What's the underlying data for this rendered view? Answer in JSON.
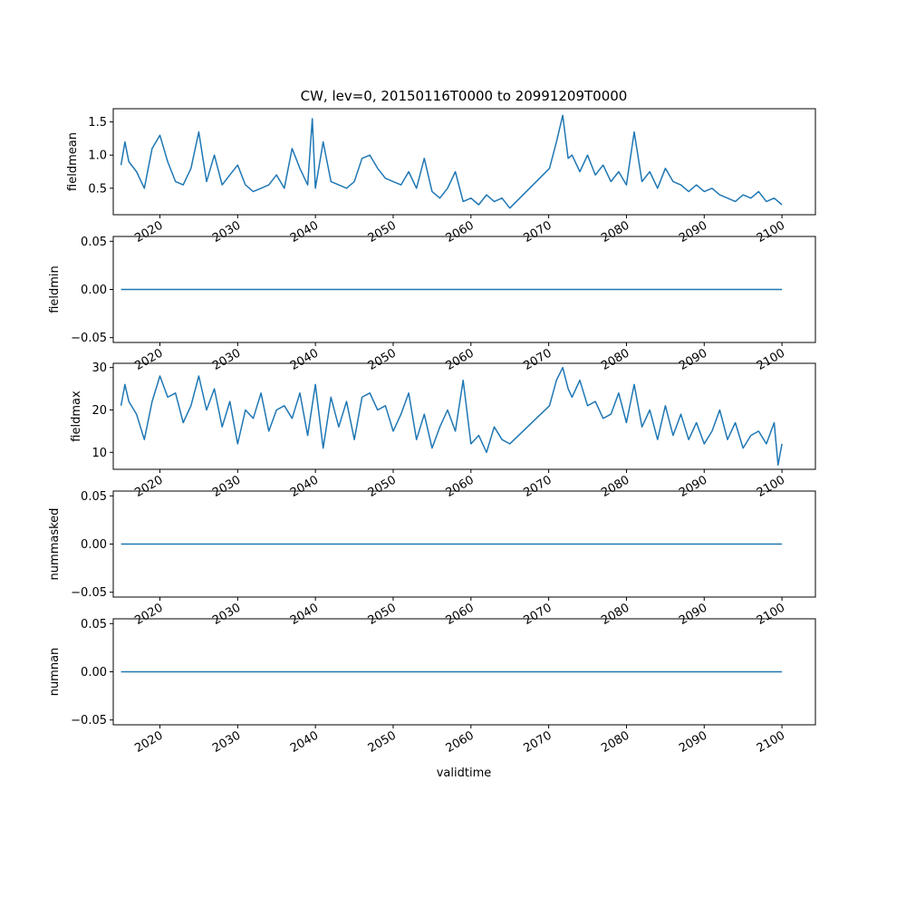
{
  "chart_data": {
    "type": "line",
    "title": "CW, lev=0, 20150116T0000 to 20991209T0000",
    "xlabel": "validtime",
    "x_range": [
      2014.0,
      2104.3
    ],
    "x_ticks": [
      2020,
      2030,
      2040,
      2050,
      2060,
      2070,
      2080,
      2090,
      2100
    ],
    "x_tick_labels": [
      "2020",
      "2030",
      "2040",
      "2050",
      "2060",
      "2070",
      "2080",
      "2090",
      "2100"
    ],
    "series_color": "#1f77b4",
    "panels": [
      {
        "ylabel": "fieldmean",
        "ylim": [
          0.1,
          1.7
        ],
        "y_ticks": [
          0.5,
          1.0,
          1.5
        ],
        "y_tick_labels": [
          "0.5",
          "1.0",
          "1.5"
        ],
        "points": [
          [
            2015.0,
            0.85
          ],
          [
            2015.5,
            1.2
          ],
          [
            2016.0,
            0.9
          ],
          [
            2017.0,
            0.75
          ],
          [
            2018.0,
            0.5
          ],
          [
            2019.0,
            1.1
          ],
          [
            2020.0,
            1.3
          ],
          [
            2021.0,
            0.9
          ],
          [
            2022.0,
            0.6
          ],
          [
            2023.0,
            0.55
          ],
          [
            2024.0,
            0.8
          ],
          [
            2025.0,
            1.35
          ],
          [
            2026.0,
            0.6
          ],
          [
            2027.0,
            1.0
          ],
          [
            2028.0,
            0.55
          ],
          [
            2029.0,
            0.7
          ],
          [
            2030.0,
            0.85
          ],
          [
            2031.0,
            0.55
          ],
          [
            2032.0,
            0.45
          ],
          [
            2033.0,
            0.5
          ],
          [
            2034.0,
            0.55
          ],
          [
            2035.0,
            0.7
          ],
          [
            2036.0,
            0.5
          ],
          [
            2037.0,
            1.1
          ],
          [
            2038.0,
            0.8
          ],
          [
            2039.0,
            0.55
          ],
          [
            2039.6,
            1.55
          ],
          [
            2040.0,
            0.5
          ],
          [
            2041.0,
            1.2
          ],
          [
            2042.0,
            0.6
          ],
          [
            2043.0,
            0.55
          ],
          [
            2044.0,
            0.5
          ],
          [
            2045.0,
            0.6
          ],
          [
            2046.0,
            0.95
          ],
          [
            2047.0,
            1.0
          ],
          [
            2048.0,
            0.8
          ],
          [
            2049.0,
            0.65
          ],
          [
            2050.0,
            0.6
          ],
          [
            2051.0,
            0.55
          ],
          [
            2052.0,
            0.75
          ],
          [
            2053.0,
            0.5
          ],
          [
            2054.0,
            0.95
          ],
          [
            2055.0,
            0.45
          ],
          [
            2056.0,
            0.35
          ],
          [
            2057.0,
            0.5
          ],
          [
            2058.0,
            0.75
          ],
          [
            2059.0,
            0.3
          ],
          [
            2060.0,
            0.35
          ],
          [
            2061.0,
            0.25
          ],
          [
            2062.0,
            0.4
          ],
          [
            2063.0,
            0.3
          ],
          [
            2064.0,
            0.35
          ],
          [
            2065.0,
            0.2
          ],
          [
            2070.1,
            0.8
          ],
          [
            2071.0,
            1.2
          ],
          [
            2071.8,
            1.6
          ],
          [
            2072.5,
            0.95
          ],
          [
            2073.0,
            1.0
          ],
          [
            2074.0,
            0.75
          ],
          [
            2075.0,
            1.0
          ],
          [
            2076.0,
            0.7
          ],
          [
            2077.0,
            0.85
          ],
          [
            2078.0,
            0.6
          ],
          [
            2079.0,
            0.75
          ],
          [
            2080.0,
            0.55
          ],
          [
            2081.0,
            1.35
          ],
          [
            2082.0,
            0.6
          ],
          [
            2083.0,
            0.75
          ],
          [
            2084.0,
            0.5
          ],
          [
            2085.0,
            0.8
          ],
          [
            2086.0,
            0.6
          ],
          [
            2087.0,
            0.55
          ],
          [
            2088.0,
            0.45
          ],
          [
            2089.0,
            0.55
          ],
          [
            2090.0,
            0.45
          ],
          [
            2091.0,
            0.5
          ],
          [
            2092.0,
            0.4
          ],
          [
            2093.0,
            0.35
          ],
          [
            2094.0,
            0.3
          ],
          [
            2095.0,
            0.4
          ],
          [
            2096.0,
            0.35
          ],
          [
            2097.0,
            0.45
          ],
          [
            2098.0,
            0.3
          ],
          [
            2099.0,
            0.35
          ],
          [
            2100.0,
            0.25
          ]
        ]
      },
      {
        "ylabel": "fieldmin",
        "ylim": [
          -0.055,
          0.055
        ],
        "y_ticks": [
          -0.05,
          0.0,
          0.05
        ],
        "y_tick_labels": [
          "−0.05",
          "0.00",
          "0.05"
        ],
        "points": [
          [
            2015.0,
            0.0
          ],
          [
            2100.0,
            0.0
          ]
        ]
      },
      {
        "ylabel": "fieldmax",
        "ylim": [
          6,
          31
        ],
        "y_ticks": [
          10,
          20,
          30
        ],
        "y_tick_labels": [
          "10",
          "20",
          "30"
        ],
        "points": [
          [
            2015.0,
            21
          ],
          [
            2015.5,
            26
          ],
          [
            2016.0,
            22
          ],
          [
            2017.0,
            19
          ],
          [
            2018.0,
            13
          ],
          [
            2019.0,
            22
          ],
          [
            2020.0,
            28
          ],
          [
            2021.0,
            23
          ],
          [
            2022.0,
            24
          ],
          [
            2023.0,
            17
          ],
          [
            2024.0,
            21
          ],
          [
            2025.0,
            28
          ],
          [
            2026.0,
            20
          ],
          [
            2027.0,
            25
          ],
          [
            2028.0,
            16
          ],
          [
            2029.0,
            22
          ],
          [
            2030.0,
            12
          ],
          [
            2031.0,
            20
          ],
          [
            2032.0,
            18
          ],
          [
            2033.0,
            24
          ],
          [
            2034.0,
            15
          ],
          [
            2035.0,
            20
          ],
          [
            2036.0,
            21
          ],
          [
            2037.0,
            18
          ],
          [
            2038.0,
            24
          ],
          [
            2039.0,
            14
          ],
          [
            2040.0,
            26
          ],
          [
            2041.0,
            11
          ],
          [
            2042.0,
            23
          ],
          [
            2043.0,
            16
          ],
          [
            2044.0,
            22
          ],
          [
            2045.0,
            13
          ],
          [
            2046.0,
            23
          ],
          [
            2047.0,
            24
          ],
          [
            2048.0,
            20
          ],
          [
            2049.0,
            21
          ],
          [
            2050.0,
            15
          ],
          [
            2051.0,
            19
          ],
          [
            2052.0,
            24
          ],
          [
            2053.0,
            13
          ],
          [
            2054.0,
            19
          ],
          [
            2055.0,
            11
          ],
          [
            2056.0,
            16
          ],
          [
            2057.0,
            20
          ],
          [
            2058.0,
            15
          ],
          [
            2059.0,
            27
          ],
          [
            2060.0,
            12
          ],
          [
            2061.0,
            14
          ],
          [
            2062.0,
            10
          ],
          [
            2063.0,
            16
          ],
          [
            2064.0,
            13
          ],
          [
            2065.0,
            12
          ],
          [
            2070.1,
            21
          ],
          [
            2071.0,
            27
          ],
          [
            2071.8,
            30
          ],
          [
            2072.5,
            25
          ],
          [
            2073.0,
            23
          ],
          [
            2074.0,
            27
          ],
          [
            2075.0,
            21
          ],
          [
            2076.0,
            22
          ],
          [
            2077.0,
            18
          ],
          [
            2078.0,
            19
          ],
          [
            2079.0,
            24
          ],
          [
            2080.0,
            17
          ],
          [
            2081.0,
            26
          ],
          [
            2082.0,
            16
          ],
          [
            2083.0,
            20
          ],
          [
            2084.0,
            13
          ],
          [
            2085.0,
            21
          ],
          [
            2086.0,
            14
          ],
          [
            2087.0,
            19
          ],
          [
            2088.0,
            13
          ],
          [
            2089.0,
            17
          ],
          [
            2090.0,
            12
          ],
          [
            2091.0,
            15
          ],
          [
            2092.0,
            20
          ],
          [
            2093.0,
            13
          ],
          [
            2094.0,
            17
          ],
          [
            2095.0,
            11
          ],
          [
            2096.0,
            14
          ],
          [
            2097.0,
            15
          ],
          [
            2098.0,
            12
          ],
          [
            2099.0,
            17
          ],
          [
            2099.5,
            7
          ],
          [
            2100.0,
            12
          ]
        ]
      },
      {
        "ylabel": "nummasked",
        "ylim": [
          -0.055,
          0.055
        ],
        "y_ticks": [
          -0.05,
          0.0,
          0.05
        ],
        "y_tick_labels": [
          "−0.05",
          "0.00",
          "0.05"
        ],
        "points": [
          [
            2015.0,
            0.0
          ],
          [
            2100.0,
            0.0
          ]
        ]
      },
      {
        "ylabel": "numnan",
        "ylim": [
          -0.055,
          0.055
        ],
        "y_ticks": [
          -0.05,
          0.0,
          0.05
        ],
        "y_tick_labels": [
          "−0.05",
          "0.00",
          "0.05"
        ],
        "points": [
          [
            2015.0,
            0.0
          ],
          [
            2100.0,
            0.0
          ]
        ]
      }
    ]
  }
}
